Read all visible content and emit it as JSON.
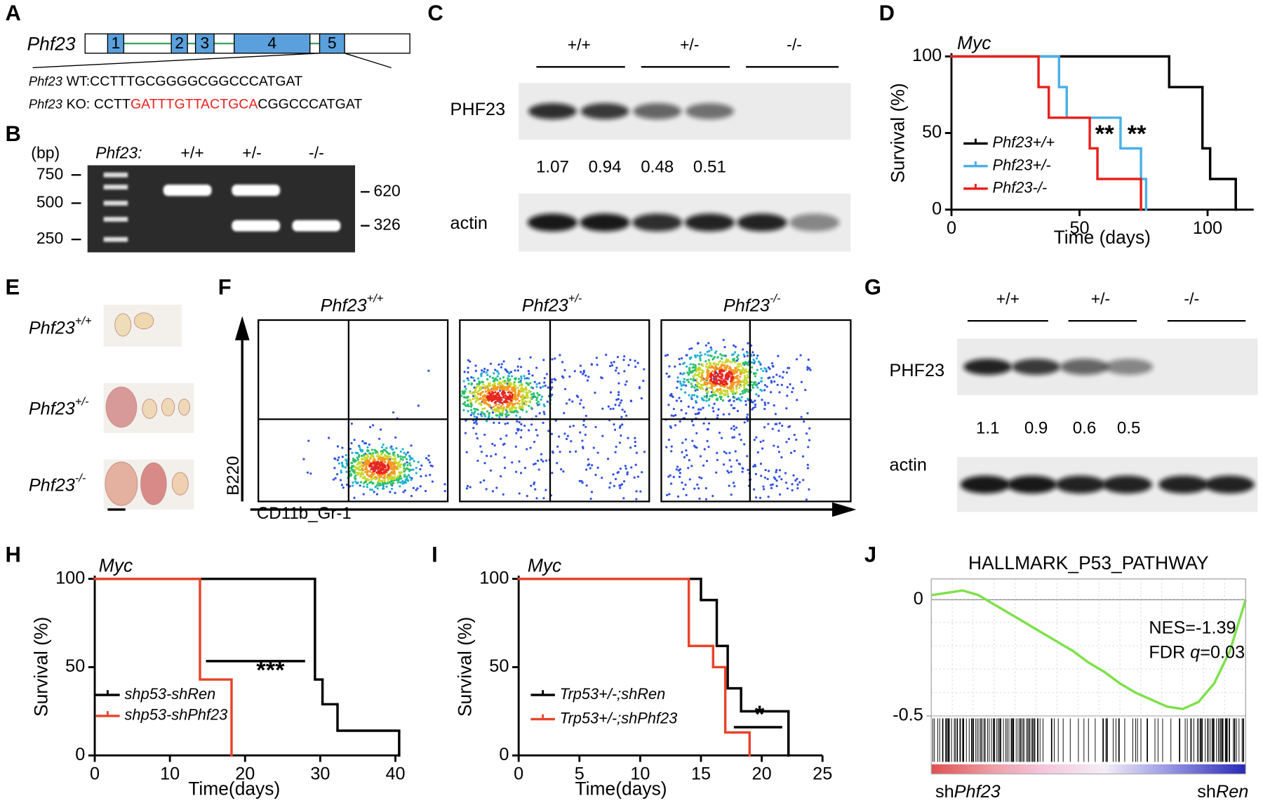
{
  "panels": [
    "A",
    "B",
    "C",
    "D",
    "E",
    "F",
    "G",
    "H",
    "I",
    "J"
  ],
  "gene_diagram": {
    "gene": "Phf23",
    "exons": [
      "1",
      "2",
      "3",
      "4",
      "5"
    ],
    "wt": {
      "gene": "Phf23",
      "label": "WT:",
      "sequence": "CCTTTGCGGGGCGGCCCATGAT"
    },
    "ko": {
      "gene": "Phf23",
      "label": "KO:",
      "sequence": [
        "CCTT",
        "GATTTGTTACTGCA",
        "CGGCCCATGAT"
      ]
    }
  },
  "gel": {
    "unit": "(bp)",
    "gene": "Phf23:",
    "lanes": [
      "+/+",
      "+/-",
      "-/-"
    ],
    "ladder": [
      750,
      500,
      250
    ],
    "bands": [
      620,
      326
    ]
  },
  "western_c": {
    "genotypes": [
      "+/+",
      "+/-",
      "-/-"
    ],
    "protein": "PHF23",
    "quantification": [
      1.07,
      0.94,
      0.48,
      0.51
    ],
    "loading": "actin"
  },
  "tumors": {
    "rows": [
      {
        "gene": "Phf23",
        "genotype": "+/+"
      },
      {
        "gene": "Phf23",
        "genotype": "+/-"
      },
      {
        "gene": "Phf23",
        "genotype": "-/-"
      }
    ]
  },
  "flow": {
    "plots": [
      {
        "gene": "Phf23",
        "genotype": "+/+"
      },
      {
        "gene": "Phf23",
        "genotype": "+/-"
      },
      {
        "gene": "Phf23",
        "genotype": "-/-"
      }
    ],
    "y_label": "B220",
    "x_label": "CD11b_Gr-1"
  },
  "western_g": {
    "genotypes": [
      "+/+",
      "+/-",
      "-/-"
    ],
    "protein": "PHF23",
    "quantification": [
      1.1,
      0.9,
      0.6,
      0.5
    ],
    "loading": "actin"
  },
  "chart_data": [
    {
      "type": "step",
      "title": "Myc",
      "x_label": "Time (days)",
      "y_label": "Survival (%)",
      "xlim": [
        0,
        118
      ],
      "ylim": [
        0,
        100
      ],
      "xticks": [
        0,
        50,
        100
      ],
      "yticks": [
        0,
        50,
        100
      ],
      "series": [
        {
          "name": "Phf23+/+",
          "color": "#000000",
          "x": [
            0,
            85,
            98,
            101,
            111
          ],
          "values": [
            100,
            80,
            40,
            20,
            0
          ]
        },
        {
          "name": "Phf23+/-",
          "color": "#4bb0e6",
          "x": [
            0,
            42,
            45,
            66,
            74,
            76
          ],
          "values": [
            100,
            80,
            60,
            40,
            20,
            0
          ]
        },
        {
          "name": "Phf23-/-",
          "color": "#e8211d",
          "x": [
            0,
            34,
            38,
            54,
            57,
            74
          ],
          "values": [
            100,
            80,
            60,
            40,
            20,
            0
          ]
        }
      ],
      "annotations": [
        "**",
        "**"
      ]
    },
    {
      "type": "step",
      "title": "Myc",
      "x_label": "Time(days)",
      "y_label": "Survival (%)",
      "xlim": [
        0,
        40.5
      ],
      "ylim": [
        0,
        100
      ],
      "xticks": [
        0,
        10,
        20,
        30,
        40
      ],
      "yticks": [
        0,
        50,
        100
      ],
      "series": [
        {
          "name": "shp53-shRen",
          "color": "#000000",
          "x": [
            0,
            29.3,
            30.3,
            32.3,
            40.5
          ],
          "values": [
            100,
            43,
            29,
            14,
            0
          ]
        },
        {
          "name": "shp53-shPhf23",
          "color": "#e8432a",
          "x": [
            0,
            14,
            18.2
          ],
          "values": [
            100,
            43,
            0
          ]
        }
      ],
      "annotations": [
        "***"
      ]
    },
    {
      "type": "step",
      "title": "Myc",
      "x_label": "Time(days)",
      "y_label": "Survival (%)",
      "xlim": [
        0,
        25
      ],
      "ylim": [
        0,
        100
      ],
      "xticks": [
        0,
        5,
        10,
        15,
        20,
        25
      ],
      "yticks": [
        0,
        50,
        100
      ],
      "series": [
        {
          "name": "Trp53+/-;shRen",
          "color": "#000000",
          "x": [
            0,
            15,
            16.3,
            17.2,
            18.3,
            22.2
          ],
          "values": [
            100,
            88,
            62,
            38,
            25,
            0
          ]
        },
        {
          "name": "Trp53+/-;shPhf23",
          "color": "#e8432a",
          "x": [
            0,
            14,
            16,
            17,
            19
          ],
          "values": [
            100,
            62,
            50,
            13,
            0
          ]
        }
      ],
      "annotations": [
        "*"
      ]
    },
    {
      "type": "line",
      "title": "HALLMARK_P53_PATHWAY",
      "ylim": [
        -0.5,
        0.09
      ],
      "yticks": [
        0,
        -0.5
      ],
      "color": "#7ee04a",
      "values": [
        0.02,
        0.03,
        0.04,
        0.02,
        -0.02,
        -0.06,
        -0.1,
        -0.14,
        -0.18,
        -0.22,
        -0.27,
        -0.31,
        -0.36,
        -0.4,
        -0.43,
        -0.46,
        -0.47,
        -0.44,
        -0.36,
        -0.22,
        0
      ],
      "nes": "NES=-1.39",
      "fdr": [
        "FDR",
        "q",
        "=0.03"
      ],
      "x_labels": [
        [
          "sh",
          "Phf23"
        ],
        [
          "sh",
          "Ren"
        ]
      ]
    }
  ]
}
